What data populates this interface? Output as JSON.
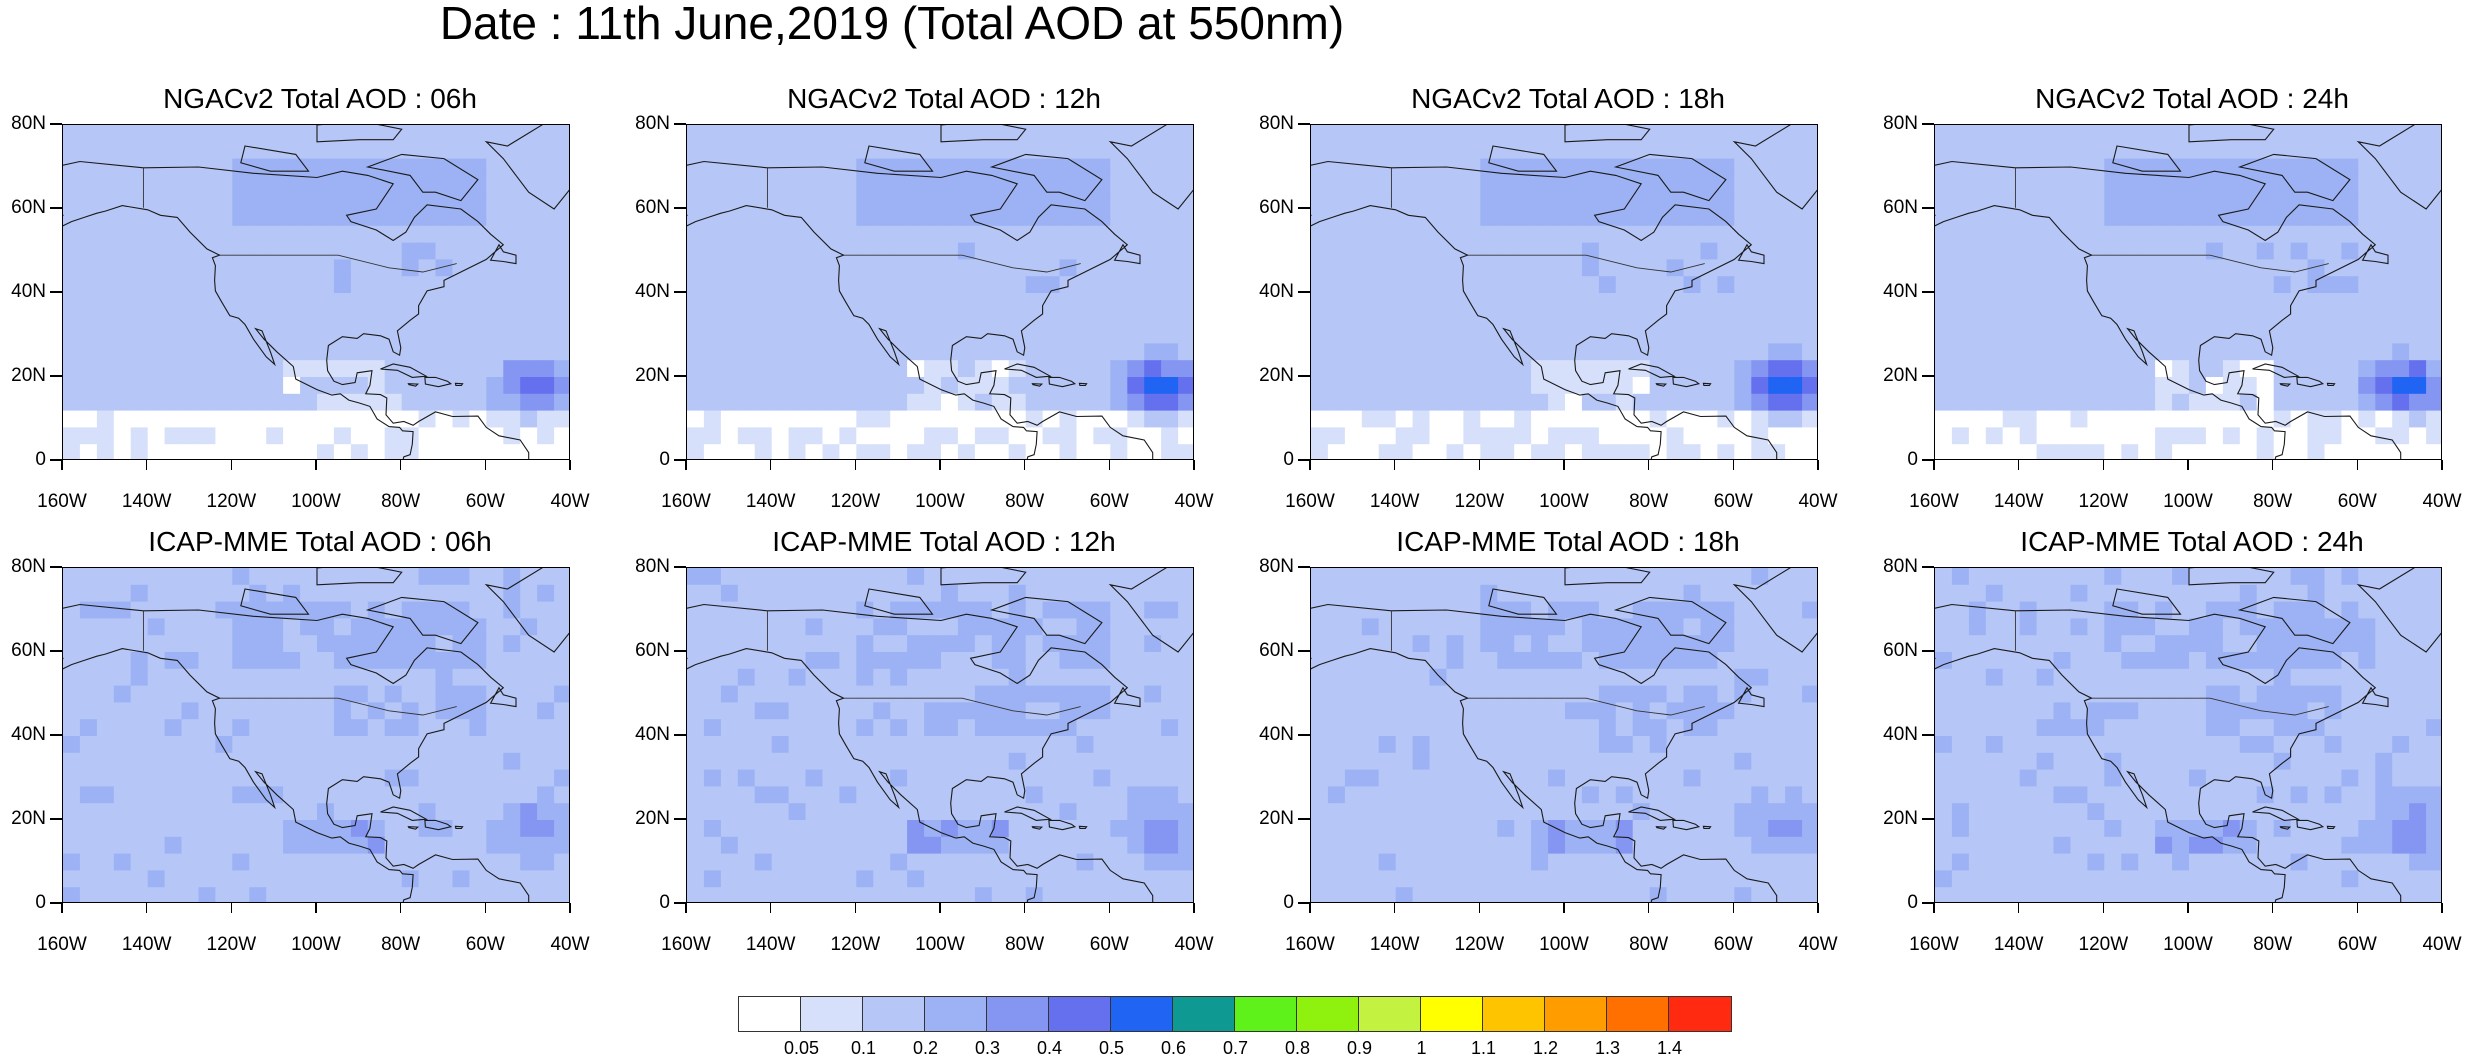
{
  "title": "Date : 11th June,2019 (Total AOD at 550nm)",
  "axes": {
    "y_ticks": [
      "80N",
      "60N",
      "40N",
      "20N",
      "0"
    ],
    "x_ticks": [
      "160W",
      "140W",
      "120W",
      "100W",
      "80W",
      "60W",
      "40W"
    ],
    "lon_range": [
      -160,
      -40
    ],
    "lat_range": [
      0,
      80
    ]
  },
  "panels": [
    {
      "title": "NGACv2 Total AOD : 06h",
      "model": "NGACv2",
      "hour": "06h",
      "plume_max": 0.5
    },
    {
      "title": "NGACv2 Total AOD : 12h",
      "model": "NGACv2",
      "hour": "12h",
      "plume_max": 0.6
    },
    {
      "title": "NGACv2 Total AOD : 18h",
      "model": "NGACv2",
      "hour": "18h",
      "plume_max": 0.6
    },
    {
      "title": "NGACv2 Total AOD : 24h",
      "model": "NGACv2",
      "hour": "24h",
      "plume_max": 0.6
    },
    {
      "title": "ICAP-MME Total AOD : 06h",
      "model": "ICAP-MME",
      "hour": "06h",
      "plume_max": 0.3
    },
    {
      "title": "ICAP-MME Total AOD : 12h",
      "model": "ICAP-MME",
      "hour": "12h",
      "plume_max": 0.3
    },
    {
      "title": "ICAP-MME Total AOD : 18h",
      "model": "ICAP-MME",
      "hour": "18h",
      "plume_max": 0.3
    },
    {
      "title": "ICAP-MME Total AOD : 24h",
      "model": "ICAP-MME",
      "hour": "24h",
      "plume_max": 0.3
    }
  ],
  "colorbar": {
    "colors": [
      "#ffffff",
      "#d6e0fa",
      "#b6c6f6",
      "#9cb2f4",
      "#8596f2",
      "#6570ee",
      "#1f64f2",
      "#0e9a93",
      "#5ef21a",
      "#8ef20e",
      "#c4f240",
      "#ffff00",
      "#ffc400",
      "#ff9c00",
      "#ff7000",
      "#ff2a10"
    ],
    "labels": [
      "0.05",
      "0.1",
      "0.2",
      "0.3",
      "0.4",
      "0.5",
      "0.6",
      "0.7",
      "0.8",
      "0.9",
      "1",
      "1.1",
      "1.2",
      "1.3",
      "1.4"
    ]
  }
}
